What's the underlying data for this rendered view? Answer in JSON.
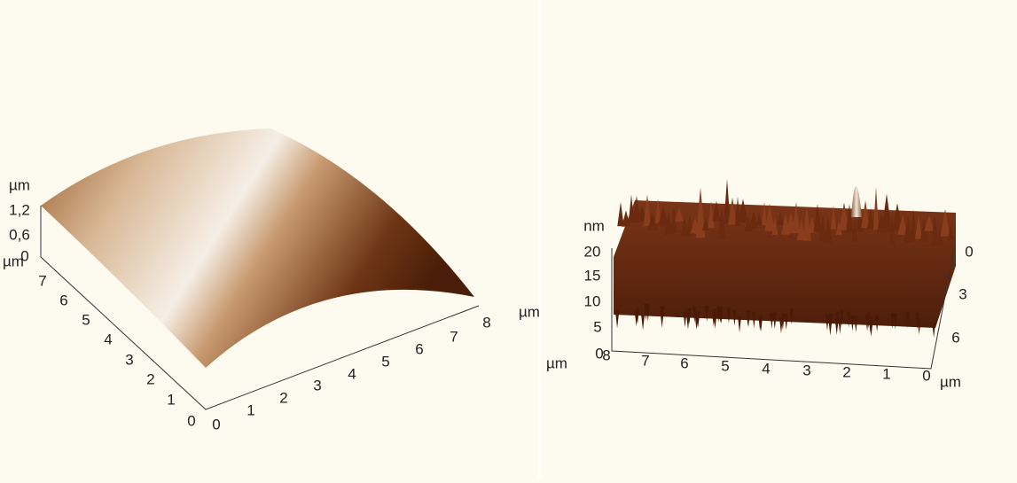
{
  "panels": [
    {
      "z_axis": {
        "unit": "µm",
        "ticks": [
          "1,2",
          "0,6",
          "0"
        ]
      },
      "y_axis": {
        "unit": "µm",
        "ticks": [
          "0",
          "1",
          "2",
          "3",
          "4",
          "5",
          "6",
          "7"
        ]
      },
      "x_axis": {
        "unit": "µm",
        "ticks": [
          "0",
          "1",
          "2",
          "3",
          "4",
          "5",
          "6",
          "7",
          "8"
        ]
      }
    },
    {
      "z_axis": {
        "unit": "nm",
        "ticks": [
          "20",
          "15",
          "10",
          "5",
          "0"
        ]
      },
      "x_axis": {
        "unit": "µm",
        "ticks": [
          "8",
          "7",
          "6",
          "5",
          "4",
          "3",
          "2",
          "1",
          "0"
        ]
      },
      "y_axis": {
        "unit": "µm",
        "ticks": [
          "0",
          "3",
          "6"
        ]
      }
    }
  ]
}
